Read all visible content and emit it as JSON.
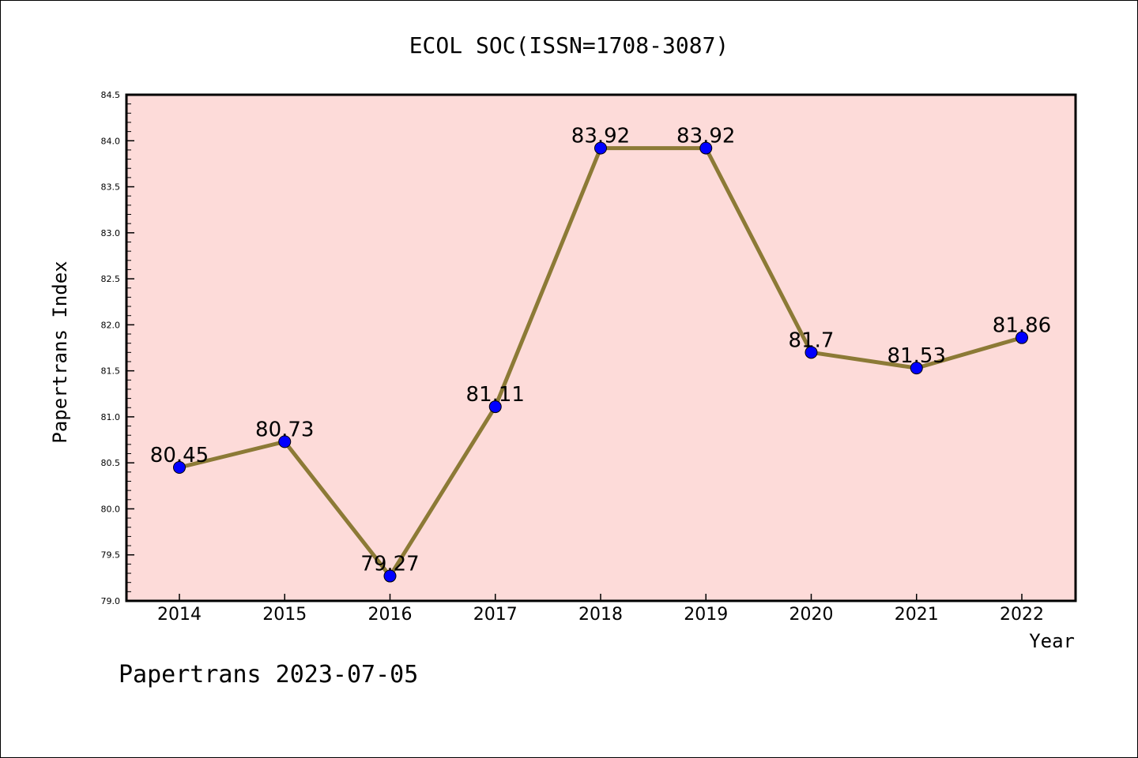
{
  "chart_data": {
    "type": "line",
    "title": "ECOL SOC(ISSN=1708-3087)",
    "xlabel": "Year",
    "ylabel": "Papertrans Index",
    "categories": [
      "2014",
      "2015",
      "2016",
      "2017",
      "2018",
      "2019",
      "2020",
      "2021",
      "2022"
    ],
    "series": [
      {
        "values": [
          80.45,
          80.73,
          79.27,
          81.11,
          83.92,
          83.92,
          81.7,
          81.53,
          81.86
        ],
        "labels": [
          "80.45",
          "80.73",
          "79.27",
          "81.11",
          "83.92",
          "83.92",
          "81.7",
          "81.53",
          "81.86"
        ]
      }
    ],
    "ylim": [
      79.0,
      84.5
    ],
    "yticks": [
      "79.0",
      "79.5",
      "80.0",
      "80.5",
      "81.0",
      "81.5",
      "82.0",
      "82.5",
      "83.0",
      "83.5",
      "84.0",
      "84.5"
    ],
    "grid": false,
    "colors": {
      "plot_background": "#fddbd9",
      "line": "#8c7a36",
      "marker": "#0000ff"
    }
  },
  "footer": "Papertrans 2023-07-05"
}
